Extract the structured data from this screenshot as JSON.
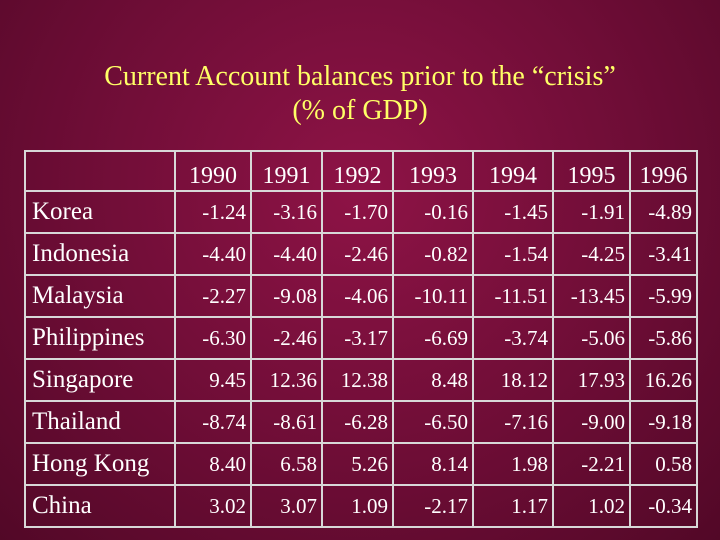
{
  "slide": {
    "title_line1": "Current Account balances prior to the “crisis”",
    "title_line2": "(% of GDP)"
  },
  "table": {
    "columns": [
      "1990",
      "1991",
      "1992",
      "1993",
      "1994",
      "1995",
      "1996"
    ],
    "rows": [
      {
        "country": "Korea",
        "values": [
          "-1.24",
          "-3.16",
          "-1.70",
          "-0.16",
          "-1.45",
          "-1.91",
          "-4.89"
        ]
      },
      {
        "country": "Indonesia",
        "values": [
          "-4.40",
          "-4.40",
          "-2.46",
          "-0.82",
          "-1.54",
          "-4.25",
          "-3.41"
        ]
      },
      {
        "country": "Malaysia",
        "values": [
          "-2.27",
          "-9.08",
          "-4.06",
          "-10.11",
          "-11.51",
          "-13.45",
          "-5.99"
        ]
      },
      {
        "country": "Philippines",
        "values": [
          "-6.30",
          "-2.46",
          "-3.17",
          "-6.69",
          "-3.74",
          "-5.06",
          "-5.86"
        ]
      },
      {
        "country": "Singapore",
        "values": [
          "9.45",
          "12.36",
          "12.38",
          "8.48",
          "18.12",
          "17.93",
          "16.26"
        ]
      },
      {
        "country": "Thailand",
        "values": [
          "-8.74",
          "-8.61",
          "-6.28",
          "-6.50",
          "-7.16",
          "-9.00",
          "-9.18"
        ]
      },
      {
        "country": "Hong Kong",
        "values": [
          "8.40",
          "6.58",
          "5.26",
          "8.14",
          "1.98",
          "-2.21",
          "0.58"
        ]
      },
      {
        "country": "China",
        "values": [
          "3.02",
          "3.07",
          "1.09",
          "-2.17",
          "1.17",
          "1.02",
          "-0.34"
        ]
      }
    ]
  },
  "colors": {
    "background": "#7a0f3c",
    "title": "#ffff66",
    "text": "#ffffff",
    "grid": "#d8d8d8"
  }
}
